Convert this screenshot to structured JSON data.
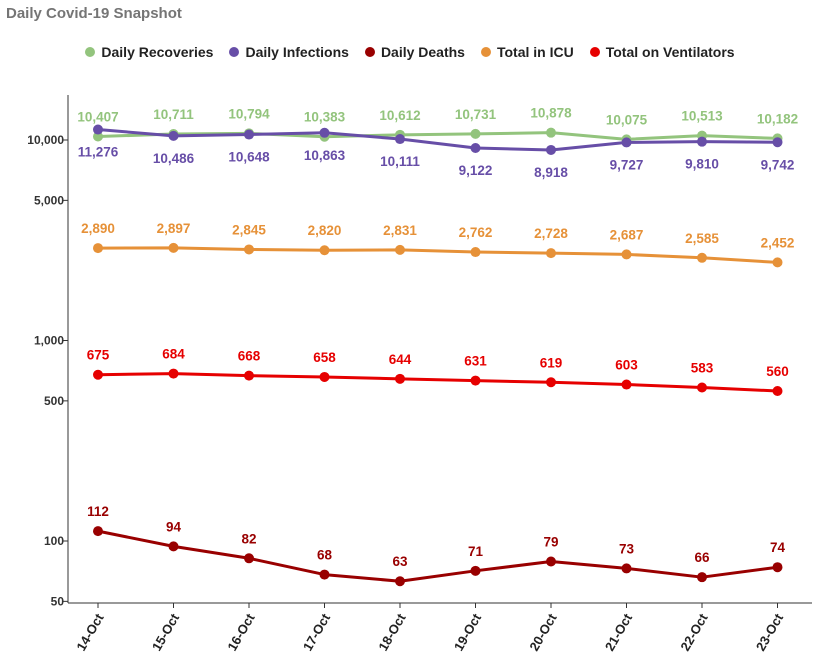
{
  "chart_data": {
    "type": "line",
    "title": "Daily Covid-19 Snapshot",
    "yscale": "log",
    "ylim": [
      50,
      20000
    ],
    "y_ticks": [
      {
        "value": 10000,
        "label": "10,000"
      },
      {
        "value": 5000,
        "label": "5,000"
      },
      {
        "value": 1000,
        "label": "1,000"
      },
      {
        "value": 500,
        "label": "500"
      },
      {
        "value": 100,
        "label": "100"
      },
      {
        "value": 50,
        "label": "50"
      }
    ],
    "categories": [
      "14-Oct",
      "15-Oct",
      "16-Oct",
      "17-Oct",
      "18-Oct",
      "19-Oct",
      "20-Oct",
      "21-Oct",
      "22-Oct",
      "23-Oct"
    ],
    "legend_position": "top",
    "grid": false,
    "series": [
      {
        "name": "Daily Recoveries",
        "color": "#93c47d",
        "label_side": "above",
        "values": [
          10407,
          10711,
          10794,
          10383,
          10612,
          10731,
          10878,
          10075,
          10513,
          10182
        ],
        "labels": [
          "10,407",
          "10,711",
          "10,794",
          "10,383",
          "10,612",
          "10,731",
          "10,878",
          "10,075",
          "10,513",
          "10,182"
        ]
      },
      {
        "name": "Daily Infections",
        "color": "#674ea7",
        "label_side": "below",
        "values": [
          11276,
          10486,
          10648,
          10863,
          10111,
          9122,
          8918,
          9727,
          9810,
          9742
        ],
        "labels": [
          "11,276",
          "10,486",
          "10,648",
          "10,863",
          "10,111",
          "9,122",
          "8,918",
          "9,727",
          "9,810",
          "9,742"
        ]
      },
      {
        "name": "Daily Deaths",
        "color": "#990000",
        "label_side": "above",
        "values": [
          112,
          94,
          82,
          68,
          63,
          71,
          79,
          73,
          66,
          74
        ],
        "labels": [
          "112",
          "94",
          "82",
          "68",
          "63",
          "71",
          "79",
          "73",
          "66",
          "74"
        ]
      },
      {
        "name": "Total in ICU",
        "color": "#e69138",
        "label_side": "above",
        "values": [
          2890,
          2897,
          2845,
          2820,
          2831,
          2762,
          2728,
          2687,
          2585,
          2452
        ],
        "labels": [
          "2,890",
          "2,897",
          "2,845",
          "2,820",
          "2,831",
          "2,762",
          "2,728",
          "2,687",
          "2,585",
          "2,452"
        ]
      },
      {
        "name": "Total on Ventilators",
        "color": "#e60000",
        "label_side": "above",
        "values": [
          675,
          684,
          668,
          658,
          644,
          631,
          619,
          603,
          583,
          560
        ],
        "labels": [
          "675",
          "684",
          "668",
          "658",
          "644",
          "631",
          "619",
          "603",
          "583",
          "560"
        ]
      }
    ]
  }
}
